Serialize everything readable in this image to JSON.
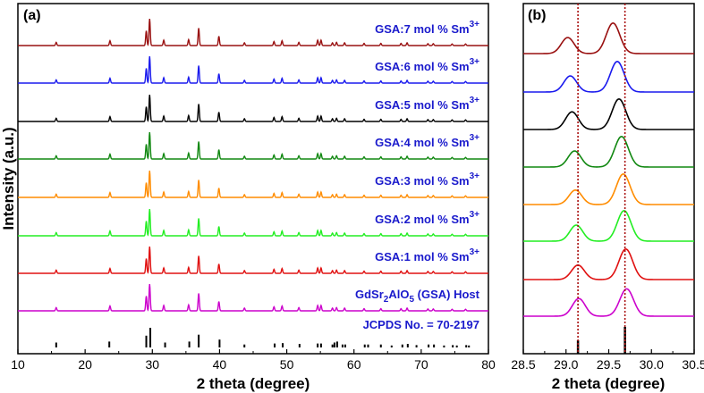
{
  "chart_data": [
    {
      "type": "line",
      "panel": "(a)",
      "title": "",
      "xlabel": "2 theta (degree)",
      "ylabel": "Intensity (a.u.)",
      "xlim": [
        10,
        80
      ],
      "xticks": [
        "10",
        "20",
        "30",
        "40",
        "50",
        "60",
        "70",
        "80"
      ],
      "peaks": [
        {
          "x": 15.7,
          "h": 0.12
        },
        {
          "x": 23.7,
          "h": 0.18
        },
        {
          "x": 29.1,
          "h": 0.55
        },
        {
          "x": 29.6,
          "h": 1.0
        },
        {
          "x": 31.7,
          "h": 0.2
        },
        {
          "x": 35.4,
          "h": 0.22
        },
        {
          "x": 36.9,
          "h": 0.65
        },
        {
          "x": 39.9,
          "h": 0.35
        },
        {
          "x": 43.7,
          "h": 0.1
        },
        {
          "x": 48.1,
          "h": 0.15
        },
        {
          "x": 49.3,
          "h": 0.18
        },
        {
          "x": 51.8,
          "h": 0.12
        },
        {
          "x": 54.6,
          "h": 0.2
        },
        {
          "x": 55.1,
          "h": 0.2
        },
        {
          "x": 56.8,
          "h": 0.1
        },
        {
          "x": 57.4,
          "h": 0.12
        },
        {
          "x": 58.6,
          "h": 0.1
        },
        {
          "x": 61.5,
          "h": 0.08
        },
        {
          "x": 64.0,
          "h": 0.08
        },
        {
          "x": 67.0,
          "h": 0.08
        },
        {
          "x": 67.9,
          "h": 0.1
        },
        {
          "x": 71.0,
          "h": 0.07
        },
        {
          "x": 71.8,
          "h": 0.07
        },
        {
          "x": 74.6,
          "h": 0.06
        },
        {
          "x": 76.6,
          "h": 0.06
        }
      ],
      "reference": {
        "label": "JCPDS No. = 70-2197",
        "color": "#000000",
        "sticks": [
          {
            "x": 15.7,
            "h": 0.25
          },
          {
            "x": 23.6,
            "h": 0.3
          },
          {
            "x": 29.1,
            "h": 0.6
          },
          {
            "x": 29.7,
            "h": 1.0
          },
          {
            "x": 31.9,
            "h": 0.25
          },
          {
            "x": 35.5,
            "h": 0.3
          },
          {
            "x": 36.9,
            "h": 0.65
          },
          {
            "x": 40.0,
            "h": 0.4
          },
          {
            "x": 43.7,
            "h": 0.15
          },
          {
            "x": 48.2,
            "h": 0.2
          },
          {
            "x": 49.4,
            "h": 0.22
          },
          {
            "x": 51.9,
            "h": 0.18
          },
          {
            "x": 54.6,
            "h": 0.2
          },
          {
            "x": 55.1,
            "h": 0.2
          },
          {
            "x": 56.8,
            "h": 0.15
          },
          {
            "x": 57.1,
            "h": 0.25
          },
          {
            "x": 57.5,
            "h": 0.3
          },
          {
            "x": 58.3,
            "h": 0.15
          },
          {
            "x": 58.7,
            "h": 0.15
          },
          {
            "x": 61.6,
            "h": 0.15
          },
          {
            "x": 62.1,
            "h": 0.15
          },
          {
            "x": 64.0,
            "h": 0.15
          },
          {
            "x": 65.6,
            "h": 0.1
          },
          {
            "x": 67.2,
            "h": 0.15
          },
          {
            "x": 68.0,
            "h": 0.18
          },
          {
            "x": 69.3,
            "h": 0.12
          },
          {
            "x": 71.1,
            "h": 0.15
          },
          {
            "x": 71.9,
            "h": 0.15
          },
          {
            "x": 73.4,
            "h": 0.1
          },
          {
            "x": 74.7,
            "h": 0.12
          },
          {
            "x": 75.3,
            "h": 0.1
          },
          {
            "x": 76.7,
            "h": 0.12
          },
          {
            "x": 77.1,
            "h": 0.1
          }
        ]
      },
      "series": [
        {
          "name": "GdSr2AlO5 (GSA) Host",
          "color": "#cc00cc",
          "label_parts": {
            "pre": "GdSr",
            "sub": "2",
            "post": "AlO",
            "sub2": "5",
            "tail": " (GSA) Host"
          }
        },
        {
          "name": "GSA:1 mol % Sm3+",
          "color": "#e01010",
          "label_parts": {
            "pre": "GSA:1 mol % Sm",
            "sup": "3+"
          }
        },
        {
          "name": "GSA:2 mol % Sm3+",
          "color": "#22ee22",
          "label_parts": {
            "pre": "GSA:2 mol % Sm",
            "sup": "3+"
          }
        },
        {
          "name": "GSA:3 mol % Sm3+",
          "color": "#ff8c00",
          "label_parts": {
            "pre": "GSA:3 mol % Sm",
            "sup": "3+"
          }
        },
        {
          "name": "GSA:4 mol % Sm3+",
          "color": "#118811",
          "label_parts": {
            "pre": "GSA:4 mol % Sm",
            "sup": "3+"
          }
        },
        {
          "name": "GSA:5 mol % Sm3+",
          "color": "#000000",
          "label_parts": {
            "pre": "GSA:5 mol % Sm",
            "sup": "3+"
          }
        },
        {
          "name": "GSA:6 mol % Sm3+",
          "color": "#1a1aee",
          "label_parts": {
            "pre": "GSA:6 mol % Sm",
            "sup": "3+"
          }
        },
        {
          "name": "GSA:7 mol % Sm3+",
          "color": "#991010",
          "label_parts": {
            "pre": "GSA:7 mol % Sm",
            "sup": "3+"
          }
        }
      ],
      "label_color": "#1a1acc"
    },
    {
      "type": "line",
      "panel": "(b)",
      "title": "",
      "xlabel": "2 theta (degree)",
      "ylabel": "",
      "xlim": [
        28.5,
        30.5
      ],
      "xticks": [
        "28.5",
        "29.0",
        "29.5",
        "30.0",
        "30.5"
      ],
      "vlines": [
        29.14,
        29.69
      ],
      "vline_color": "#aa1111",
      "reference_sticks": [
        {
          "x": 29.14,
          "h": 0.5
        },
        {
          "x": 29.69,
          "h": 1.0
        }
      ],
      "series": [
        {
          "name": "GdSr2AlO5 (GSA) Host",
          "color": "#cc00cc",
          "peak1": 29.15,
          "h1": 0.55,
          "peak2": 29.71,
          "h2": 0.85
        },
        {
          "name": "GSA:1 mol % Sm3+",
          "color": "#e01010",
          "peak1": 29.14,
          "h1": 0.45,
          "peak2": 29.7,
          "h2": 0.95
        },
        {
          "name": "GSA:2 mol % Sm3+",
          "color": "#22ee22",
          "peak1": 29.12,
          "h1": 0.5,
          "peak2": 29.68,
          "h2": 0.95
        },
        {
          "name": "GSA:3 mol % Sm3+",
          "color": "#ff8c00",
          "peak1": 29.11,
          "h1": 0.45,
          "peak2": 29.67,
          "h2": 0.95
        },
        {
          "name": "GSA:4 mol % Sm3+",
          "color": "#118811",
          "peak1": 29.1,
          "h1": 0.5,
          "peak2": 29.65,
          "h2": 0.95
        },
        {
          "name": "GSA:5 mol % Sm3+",
          "color": "#000000",
          "peak1": 29.07,
          "h1": 0.55,
          "peak2": 29.62,
          "h2": 0.95
        },
        {
          "name": "GSA:6 mol % Sm3+",
          "color": "#1a1aee",
          "peak1": 29.05,
          "h1": 0.5,
          "peak2": 29.6,
          "h2": 0.95
        },
        {
          "name": "GSA:7 mol % Sm3+",
          "color": "#991010",
          "peak1": 29.02,
          "h1": 0.5,
          "peak2": 29.55,
          "h2": 0.95
        }
      ]
    }
  ]
}
